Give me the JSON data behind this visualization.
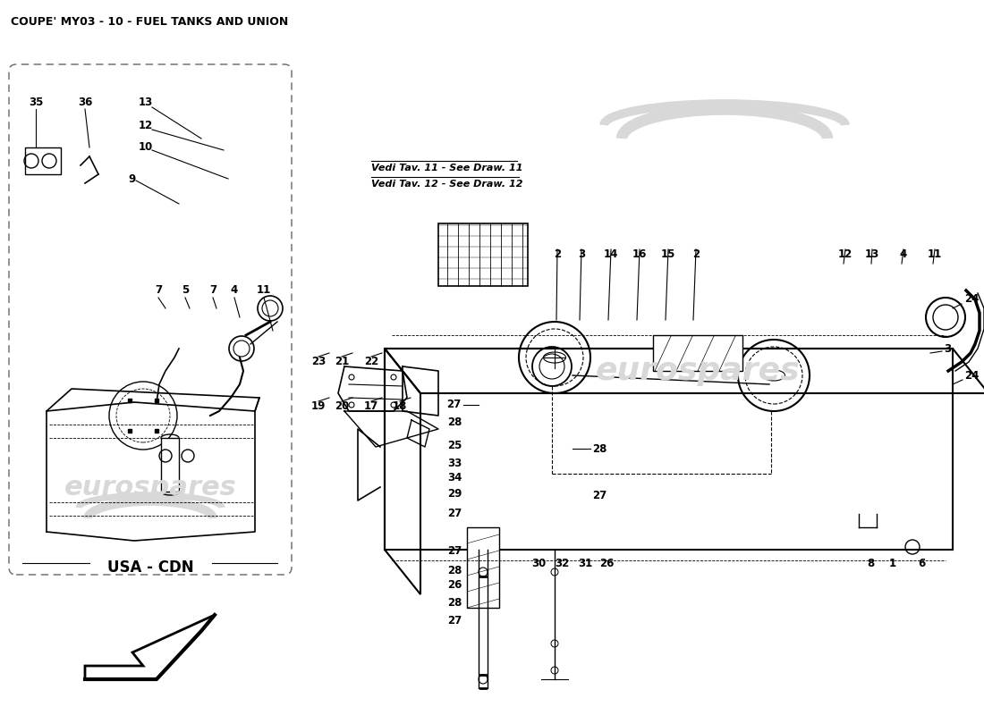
{
  "title": "COUPE' MY03 - 10 - FUEL TANKS AND UNION",
  "bg_color": "#ffffff",
  "lc": "#000000",
  "wc": "#d8d8d8",
  "watermark": "eurospares",
  "usa_cdn": "USA - CDN",
  "notes": [
    "Vedi Tav. 11 - See Draw. 11",
    "Vedi Tav. 12 - See Draw. 12"
  ],
  "title_fs": 9,
  "label_fs": 8.5
}
